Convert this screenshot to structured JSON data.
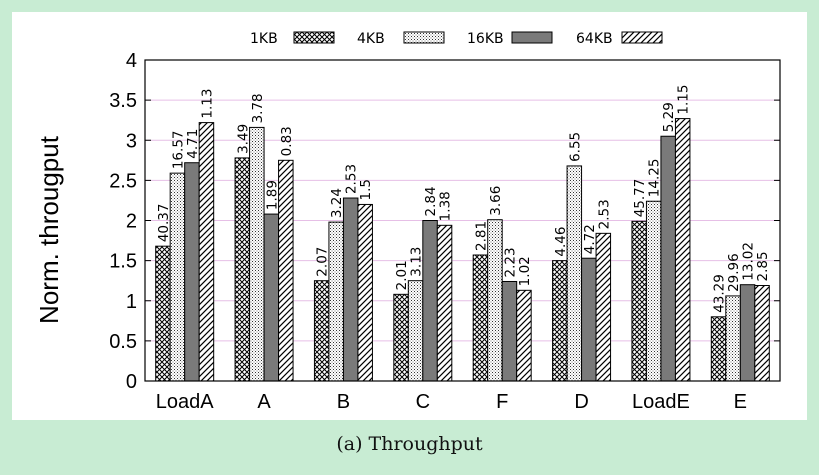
{
  "caption": "(a) Throughput",
  "chart_data": {
    "type": "bar",
    "ylabel": "Norm. througput",
    "xlabel": "",
    "ylim": [
      0,
      4
    ],
    "yticks": [
      "0",
      "0.5",
      "1",
      "1.5",
      "2",
      "2.5",
      "3",
      "3.5",
      "4"
    ],
    "grid": "horizontal",
    "legend_placement": "top",
    "categories": [
      "LoadA",
      "A",
      "B",
      "C",
      "F",
      "D",
      "LoadE",
      "E"
    ],
    "series": [
      {
        "name": "1KB",
        "pattern": "crosshatch",
        "values": [
          1.68,
          2.78,
          1.25,
          1.08,
          1.57,
          1.5,
          1.99,
          0.8
        ],
        "labels": [
          "40.37",
          "3.49",
          "2.07",
          "2.01",
          "2.81",
          "4.46",
          "45.77",
          "43.29"
        ]
      },
      {
        "name": "4KB",
        "pattern": "dots",
        "values": [
          2.59,
          3.16,
          1.98,
          1.25,
          2.01,
          2.68,
          2.24,
          1.06
        ],
        "labels": [
          "16.57",
          "3.78",
          "3.24",
          "3.13",
          "3.66",
          "6.55",
          "14.25",
          "29.96"
        ]
      },
      {
        "name": "16KB",
        "pattern": "solid-gray",
        "values": [
          2.72,
          2.08,
          2.28,
          2.0,
          1.24,
          1.53,
          3.05,
          1.2
        ],
        "labels": [
          "4.71",
          "1.89",
          "2.53",
          "2.84",
          "2.23",
          "4.72",
          "5.29",
          "13.02"
        ]
      },
      {
        "name": "64KB",
        "pattern": "diagonal",
        "values": [
          3.22,
          2.75,
          2.2,
          1.94,
          1.13,
          1.84,
          3.27,
          1.19
        ],
        "labels": [
          "1.13",
          "0.83",
          "1.5",
          "1.38",
          "1.02",
          "2.53",
          "1.15",
          "2.85"
        ]
      }
    ],
    "colors": {
      "solid_fill": "#7a7a7a",
      "bar_stroke": "#000000",
      "grid": "#e6bfe6"
    }
  }
}
